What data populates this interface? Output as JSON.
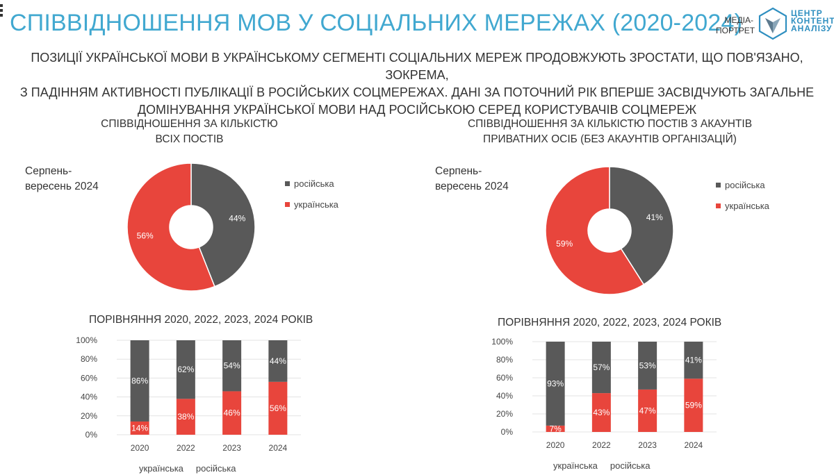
{
  "header": {
    "title": "СПІВВІДНОШЕННЯ МОВ У СОЦІАЛЬНИХ МЕРЕЖАХ (2020-2024)",
    "subtitle_lines": [
      "ПОЗИЦІЇ УКРАЇНСЬКОЇ МОВИ В УКРАЇНСЬКОМУ СЕГМЕНТІ СОЦІАЛЬНИХ МЕРЕЖ ПРОДОВЖУЮТЬ ЗРОСТАТИ, ЩО ПОВ'ЯЗАНО, ЗОКРЕМА,",
      "З ПАДІННЯМ АКТИВНОСТІ ПУБЛІКАЦІЇ В РОСІЙСЬКИХ СОЦМЕРЕЖАХ. ДАНІ ЗА ПОТОЧНИЙ РІК ВПЕРШЕ ЗАСВІДЧУЮТЬ ЗАГАЛЬНЕ",
      "ДОМІНУВАННЯ УКРАЇНСЬКОЇ МОВИ НАД РОСІЙСЬКОЮ СЕРЕД КОРИСТУВАЧІВ СОЦМЕРЕЖ"
    ]
  },
  "logo": {
    "left_lines": [
      "МЕДІА-",
      "ПОРТРЕТ"
    ],
    "right_lines": [
      "ЦЕНТР",
      "КОНТЕНТ-",
      "АНАЛІЗУ"
    ]
  },
  "colors": {
    "ukrainian": "#e8453c",
    "russian": "#595959",
    "accent": "#41a8d0"
  },
  "left": {
    "title_lines": [
      "СПІВВІДНОШЕННЯ ЗА КІЛЬКІСТЮ",
      "ВСІХ ПОСТІВ"
    ],
    "period_lines": [
      "Серпень-",
      "вересень 2024"
    ],
    "legend": [
      "російська",
      "українська"
    ],
    "compare_title": "ПОРІВНЯННЯ 2020, 2022, 2023, 2024 РОКІВ",
    "bar_legend": [
      "українська",
      "російська"
    ]
  },
  "right": {
    "title_lines": [
      "СПІВВІДНОШЕННЯ ЗА КІЛЬКІСТЮ ПОСТІВ З АКАУНТІВ",
      "ПРИВАТНИХ ОСІБ (БЕЗ АКАУНТІВ ОРГАНІЗАЦІЙ)"
    ],
    "period_lines": [
      "Серпень-",
      "вересень 2024"
    ],
    "legend": [
      "російська",
      "українська"
    ],
    "compare_title": "ПОРІВНЯННЯ 2020, 2022, 2023, 2024 РОКІВ",
    "bar_legend": [
      "українська",
      "російська"
    ]
  },
  "chart_data": [
    {
      "type": "pie",
      "title": "СПІВВІДНОШЕННЯ ЗА КІЛЬКІСТЮ ВСІХ ПОСТІВ",
      "labels": [
        "російська",
        "українська"
      ],
      "values": [
        44,
        56
      ],
      "value_labels": [
        "44%",
        "56%"
      ]
    },
    {
      "type": "bar",
      "stacked": true,
      "title": "ПОРІВНЯННЯ 2020, 2022, 2023, 2024 РОКІВ",
      "categories": [
        "2020",
        "2022",
        "2023",
        "2024"
      ],
      "series": [
        {
          "name": "українська",
          "values": [
            14,
            38,
            46,
            56
          ],
          "labels": [
            "14%",
            "38%",
            "46%",
            "56%"
          ]
        },
        {
          "name": "російська",
          "values": [
            86,
            62,
            54,
            44
          ],
          "labels": [
            "86%",
            "62%",
            "54%",
            "44%"
          ]
        }
      ],
      "ylim": [
        0,
        100
      ],
      "yticks": [
        "0%",
        "20%",
        "40%",
        "60%",
        "80%",
        "100%"
      ]
    },
    {
      "type": "pie",
      "title": "СПІВВІДНОШЕННЯ ЗА КІЛЬКІСТЮ ПОСТІВ З АКАУНТІВ ПРИВАТНИХ ОСІБ (БЕЗ АКАУНТІВ ОРГАНІЗАЦІЙ)",
      "labels": [
        "російська",
        "українська"
      ],
      "values": [
        41,
        59
      ],
      "value_labels": [
        "41%",
        "59%"
      ]
    },
    {
      "type": "bar",
      "stacked": true,
      "title": "ПОРІВНЯННЯ 2020, 2022, 2023, 2024 РОКІВ",
      "categories": [
        "2020",
        "2022",
        "2023",
        "2024"
      ],
      "series": [
        {
          "name": "українська",
          "values": [
            7,
            43,
            47,
            59
          ],
          "labels": [
            "7%",
            "43%",
            "47%",
            "59%"
          ]
        },
        {
          "name": "російська",
          "values": [
            93,
            57,
            53,
            41
          ],
          "labels": [
            "93%",
            "57%",
            "53%",
            "41%"
          ]
        }
      ],
      "ylim": [
        0,
        100
      ],
      "yticks": [
        "0%",
        "20%",
        "40%",
        "60%",
        "80%",
        "100%"
      ]
    }
  ]
}
